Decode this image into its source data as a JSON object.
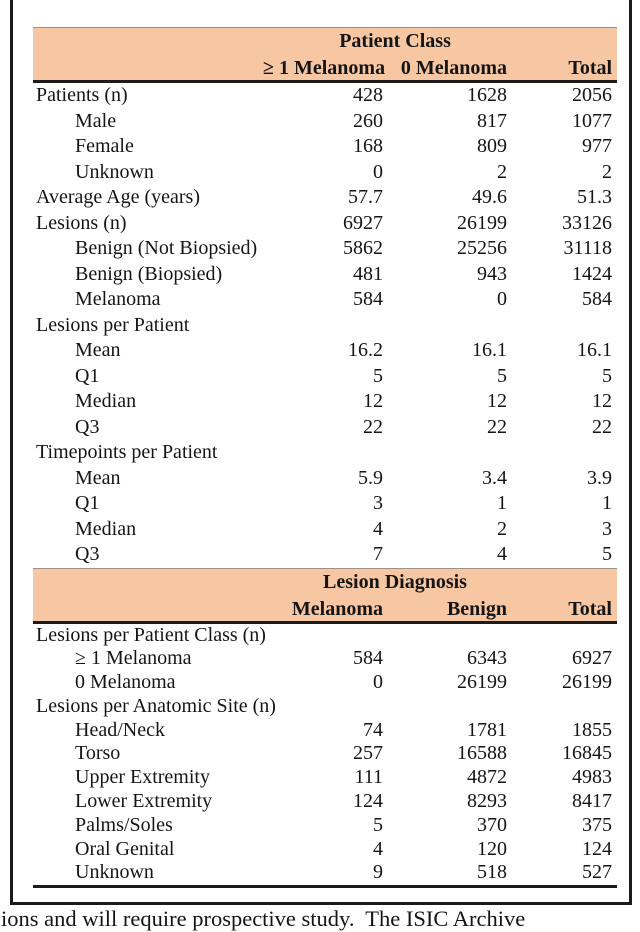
{
  "colors": {
    "header_bg": "#F6C7A2",
    "rule": "#1C1C1C",
    "frame": "#1B1B1B"
  },
  "page": {
    "caption_fragment": "ions and will require prospective study.  The ISIC Archive"
  },
  "tables": [
    {
      "title": "Patient Class",
      "columns": [
        "≥ 1 Melanoma",
        "0 Melanoma",
        "Total"
      ],
      "rows": [
        {
          "label": "Patients (n)",
          "indent": 0,
          "values": [
            "428",
            "1628",
            "2056"
          ]
        },
        {
          "label": "Male",
          "indent": 1,
          "values": [
            "260",
            "817",
            "1077"
          ]
        },
        {
          "label": "Female",
          "indent": 1,
          "values": [
            "168",
            "809",
            "977"
          ]
        },
        {
          "label": "Unknown",
          "indent": 1,
          "values": [
            "0",
            "2",
            "2"
          ]
        },
        {
          "label": "Average Age (years)",
          "indent": 0,
          "values": [
            "57.7",
            "49.6",
            "51.3"
          ]
        },
        {
          "label": "Lesions (n)",
          "indent": 0,
          "values": [
            "6927",
            "26199",
            "33126"
          ]
        },
        {
          "label": "Benign (Not Biopsied)",
          "indent": 1,
          "values": [
            "5862",
            "25256",
            "31118"
          ]
        },
        {
          "label": "Benign (Biopsied)",
          "indent": 1,
          "values": [
            "481",
            "943",
            "1424"
          ]
        },
        {
          "label": "Melanoma",
          "indent": 1,
          "values": [
            "584",
            "0",
            "584"
          ]
        },
        {
          "label": "Lesions per Patient",
          "indent": 0,
          "values": [
            "",
            "",
            ""
          ]
        },
        {
          "label": "Mean",
          "indent": 1,
          "values": [
            "16.2",
            "16.1",
            "16.1"
          ]
        },
        {
          "label": "Q1",
          "indent": 1,
          "values": [
            "5",
            "5",
            "5"
          ]
        },
        {
          "label": "Median",
          "indent": 1,
          "values": [
            "12",
            "12",
            "12"
          ]
        },
        {
          "label": "Q3",
          "indent": 1,
          "values": [
            "22",
            "22",
            "22"
          ]
        },
        {
          "label": "Timepoints per Patient",
          "indent": 0,
          "values": [
            "",
            "",
            ""
          ]
        },
        {
          "label": "Mean",
          "indent": 1,
          "values": [
            "5.9",
            "3.4",
            "3.9"
          ]
        },
        {
          "label": "Q1",
          "indent": 1,
          "values": [
            "3",
            "1",
            "1"
          ]
        },
        {
          "label": "Median",
          "indent": 1,
          "values": [
            "4",
            "2",
            "3"
          ]
        },
        {
          "label": "Q3",
          "indent": 1,
          "values": [
            "7",
            "4",
            "5"
          ]
        }
      ]
    },
    {
      "title": "Lesion Diagnosis",
      "columns": [
        "Melanoma",
        "Benign",
        "Total"
      ],
      "rows": [
        {
          "label": "Lesions per Patient Class (n)",
          "indent": 0,
          "values": [
            "",
            "",
            ""
          ]
        },
        {
          "label": "≥ 1 Melanoma",
          "indent": 1,
          "values": [
            "584",
            "6343",
            "6927"
          ]
        },
        {
          "label": "0 Melanoma",
          "indent": 1,
          "values": [
            "0",
            "26199",
            "26199"
          ]
        },
        {
          "label": "Lesions per Anatomic Site (n)",
          "indent": 0,
          "values": [
            "",
            "",
            ""
          ]
        },
        {
          "label": "Head/Neck",
          "indent": 1,
          "values": [
            "74",
            "1781",
            "1855"
          ]
        },
        {
          "label": "Torso",
          "indent": 1,
          "values": [
            "257",
            "16588",
            "16845"
          ]
        },
        {
          "label": "Upper Extremity",
          "indent": 1,
          "values": [
            "111",
            "4872",
            "4983"
          ]
        },
        {
          "label": "Lower Extremity",
          "indent": 1,
          "values": [
            "124",
            "8293",
            "8417"
          ]
        },
        {
          "label": "Palms/Soles",
          "indent": 1,
          "values": [
            "5",
            "370",
            "375"
          ]
        },
        {
          "label": "Oral Genital",
          "indent": 1,
          "values": [
            "4",
            "120",
            "124"
          ]
        },
        {
          "label": "Unknown",
          "indent": 1,
          "values": [
            "9",
            "518",
            "527"
          ]
        }
      ]
    }
  ]
}
